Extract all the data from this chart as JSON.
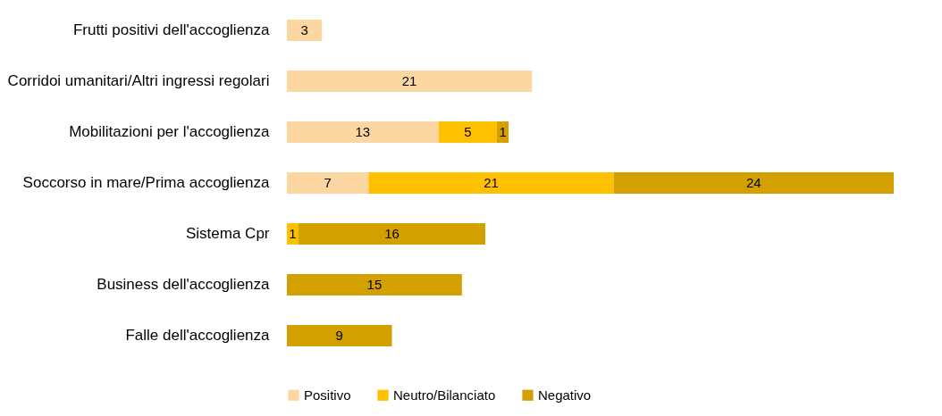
{
  "chart_data": {
    "type": "bar",
    "orientation": "horizontal",
    "stacked": true,
    "data_labels": true,
    "legend": "bottom",
    "grid": false,
    "categories": [
      "Frutti positivi dell'accoglienza",
      "Corridoi umanitari/Altri ingressi regolari",
      "Mobilitazioni per l'accoglienza",
      "Soccorso in mare/Prima accoglienza",
      "Sistema Cpr",
      "Business dell'accoglienza",
      "Falle dell'accoglienza"
    ],
    "series": [
      {
        "name": "Positivo",
        "color": "#fdd7a1",
        "values": [
          3,
          21,
          13,
          7,
          null,
          null,
          null
        ]
      },
      {
        "name": "Neutro/Bilanciato",
        "color": "#ffc000",
        "values": [
          null,
          null,
          5,
          21,
          1,
          null,
          null
        ]
      },
      {
        "name": "Negativo",
        "color": "#d4a000",
        "values": [
          null,
          null,
          1,
          24,
          16,
          15,
          9
        ]
      }
    ]
  }
}
